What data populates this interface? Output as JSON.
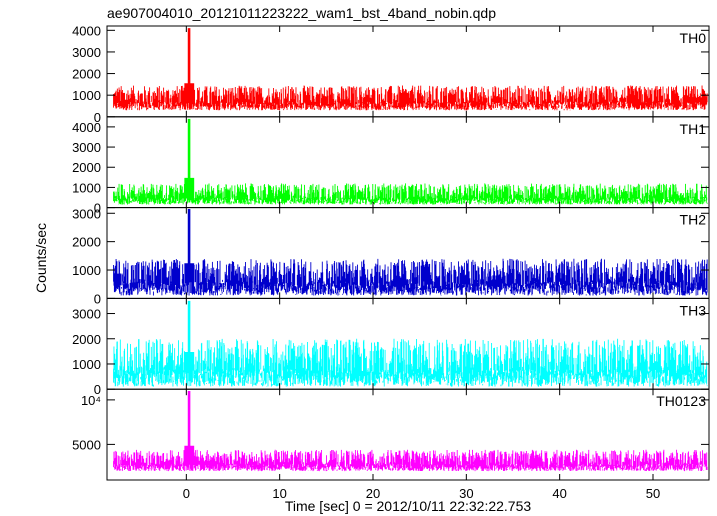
{
  "page": {
    "title": "ae907004010_20121011223222_wam1_bst_4band_nobin.qdp",
    "ylabel": "Counts/sec",
    "xlabel": "Time [sec] 0 = 2012/10/11 22:32:22.753"
  },
  "chart_data": [
    {
      "type": "line",
      "name": "TH0",
      "color": "#ff0000",
      "xlim": [
        -8.5,
        56
      ],
      "ylim": [
        0,
        4200
      ],
      "yticks": [
        0,
        1000,
        2000,
        3000,
        4000
      ],
      "yticklabels": [
        "0",
        "1000",
        "2000",
        "3000",
        "4000"
      ],
      "baseline": 700,
      "noise_range": [
        300,
        1450
      ],
      "peak": {
        "x": 0.3,
        "y": 4100
      }
    },
    {
      "type": "line",
      "name": "TH1",
      "color": "#00ff00",
      "xlim": [
        -8.5,
        56
      ],
      "ylim": [
        0,
        4500
      ],
      "yticks": [
        0,
        1000,
        2000,
        3000,
        4000
      ],
      "yticklabels": [
        "0",
        "1000",
        "2000",
        "3000",
        "4000"
      ],
      "baseline": 500,
      "noise_range": [
        150,
        1200
      ],
      "peak": {
        "x": 0.3,
        "y": 4400
      }
    },
    {
      "type": "line",
      "name": "TH2",
      "color": "#0000cc",
      "xlim": [
        -8.5,
        56
      ],
      "ylim": [
        0,
        3200
      ],
      "yticks": [
        0,
        1000,
        2000,
        3000
      ],
      "yticklabels": [
        "0",
        "1000",
        "2000",
        "3000"
      ],
      "baseline": 600,
      "noise_range": [
        100,
        1400
      ],
      "peak": {
        "x": 0.3,
        "y": 3150
      }
    },
    {
      "type": "line",
      "name": "TH3",
      "color": "#00ffff",
      "xlim": [
        -8.5,
        56
      ],
      "ylim": [
        0,
        3600
      ],
      "yticks": [
        0,
        1000,
        2000,
        3000
      ],
      "yticklabels": [
        "0",
        "1000",
        "2000",
        "3000"
      ],
      "baseline": 800,
      "noise_range": [
        100,
        2000
      ],
      "peak": {
        "x": 0.3,
        "y": 3500
      }
    },
    {
      "type": "line",
      "name": "TH0123",
      "color": "#ff00ff",
      "xlim": [
        -8.5,
        56
      ],
      "ylim": [
        1000,
        11200
      ],
      "yticks": [
        5000,
        10000
      ],
      "yticklabels": [
        "5000",
        "10⁴"
      ],
      "baseline": 2800,
      "noise_range": [
        2000,
        4400
      ],
      "peak": {
        "x": 0.3,
        "y": 11000
      }
    }
  ],
  "xaxis": {
    "ticks": [
      0,
      10,
      20,
      30,
      40,
      50
    ],
    "ticklabels": [
      "0",
      "10",
      "20",
      "30",
      "40",
      "50"
    ]
  }
}
